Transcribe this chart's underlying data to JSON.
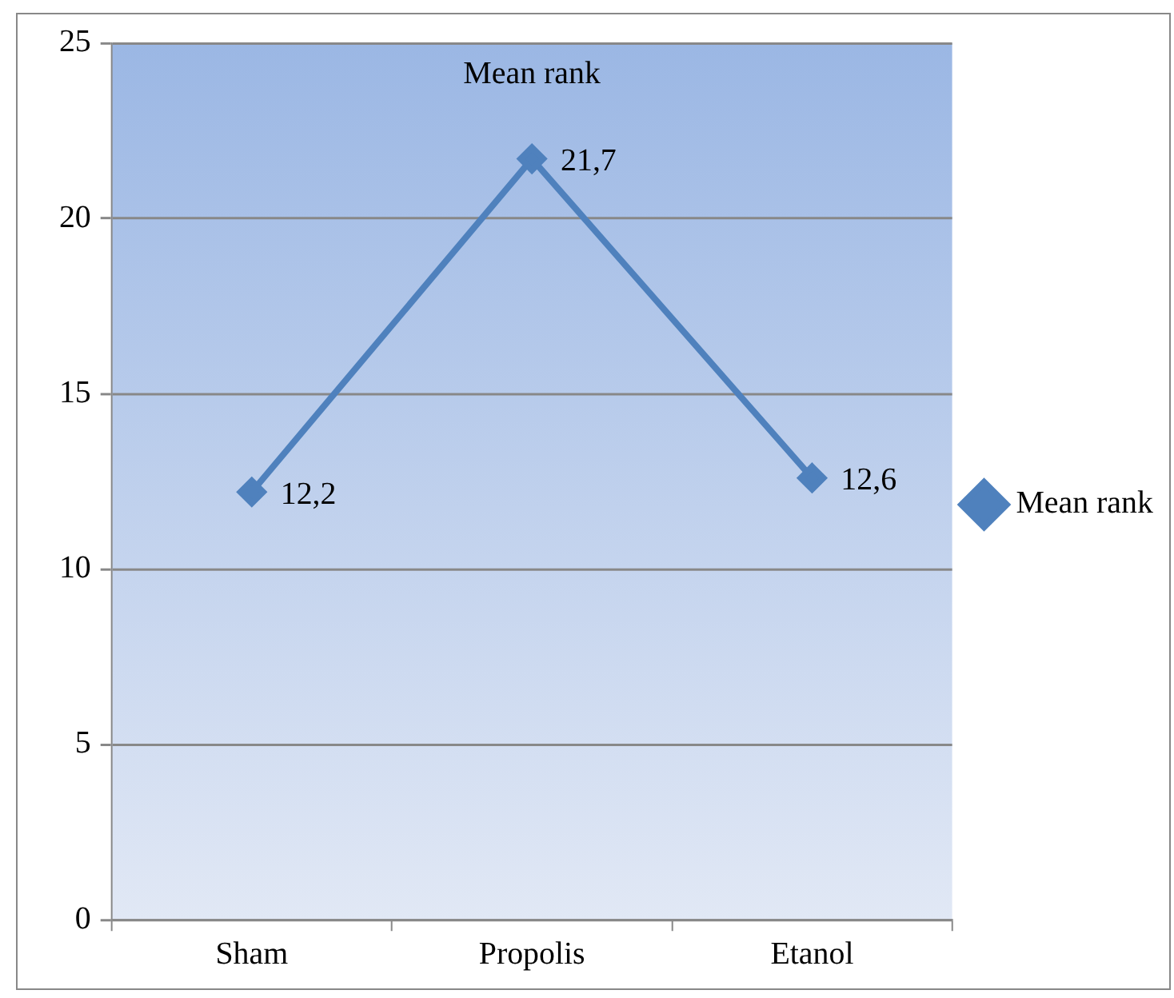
{
  "chart_data": {
    "type": "line",
    "title": "Mean rank",
    "categories": [
      "Sham",
      "Propolis",
      "Etanol"
    ],
    "series": [
      {
        "name": "Mean rank",
        "color": "#4f81bd",
        "values": [
          12.2,
          21.7,
          12.6
        ],
        "value_labels": [
          "12,2",
          "21,7",
          "12,6"
        ]
      }
    ],
    "ylim": [
      0,
      25
    ],
    "yticks": [
      0,
      5,
      10,
      15,
      20,
      25
    ],
    "grid": "y",
    "legend": "right",
    "marker": "diamond",
    "line_style": "solid"
  }
}
